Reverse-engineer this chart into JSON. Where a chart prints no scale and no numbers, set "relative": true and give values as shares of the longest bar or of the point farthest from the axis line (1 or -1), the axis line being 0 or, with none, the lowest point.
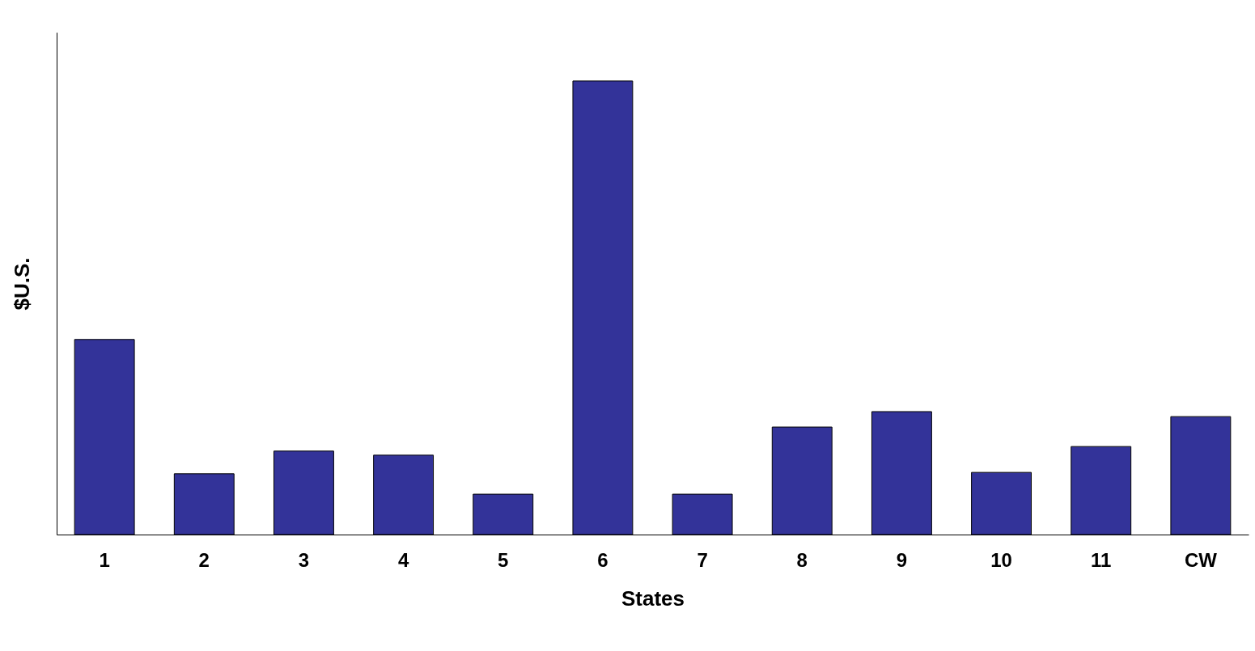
{
  "chart_data": {
    "type": "bar",
    "xlabel": "States",
    "ylabel": "$U.S.",
    "relative": true,
    "color": "#333399",
    "categories": [
      "1",
      "2",
      "3",
      "4",
      "5",
      "6",
      "7",
      "8",
      "9",
      "10",
      "11",
      "CW"
    ],
    "values": [
      0.43,
      0.134,
      0.184,
      0.175,
      0.089,
      1,
      0.089,
      0.237,
      0.271,
      0.137,
      0.194,
      0.26
    ]
  }
}
